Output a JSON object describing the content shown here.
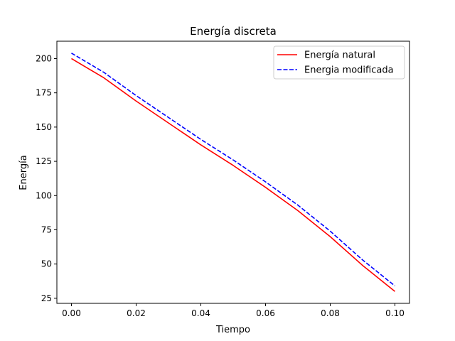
{
  "chart_data": {
    "type": "line",
    "title": "Energía discreta",
    "xlabel": "Tiempo",
    "ylabel": "Energía",
    "xlim": [
      -0.0045,
      0.1045
    ],
    "ylim": [
      21.3,
      212.7
    ],
    "xticks": [
      0.0,
      0.02,
      0.04,
      0.06,
      0.08,
      0.1
    ],
    "xtick_labels": [
      "0.00",
      "0.02",
      "0.04",
      "0.06",
      "0.08",
      "0.10"
    ],
    "yticks": [
      25,
      50,
      75,
      100,
      125,
      150,
      175,
      200
    ],
    "ytick_labels": [
      "25",
      "50",
      "75",
      "100",
      "125",
      "150",
      "175",
      "200"
    ],
    "grid": false,
    "legend_position": "top-right",
    "x": [
      0.0,
      0.01,
      0.02,
      0.03,
      0.04,
      0.05,
      0.06,
      0.07,
      0.08,
      0.09,
      0.1
    ],
    "series": [
      {
        "name": "Energía natural",
        "color": "#ff0000",
        "style": "solid",
        "values": [
          200,
          186,
          169,
          153,
          137,
          122,
          106,
          89,
          70,
          49,
          30
        ]
      },
      {
        "name": "Energia modificada",
        "color": "#0000ff",
        "style": "dashed",
        "values": [
          204,
          190,
          173,
          157,
          141,
          126,
          110,
          93,
          74,
          53,
          34
        ]
      }
    ]
  }
}
